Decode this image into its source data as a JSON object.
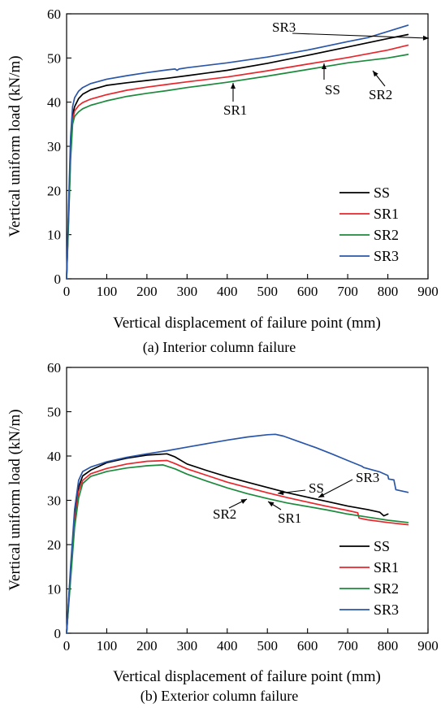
{
  "colors": {
    "SS": "#000000",
    "SR1": "#e8262c",
    "SR2": "#1c8a3c",
    "SR3": "#2a56a8"
  },
  "chart_data": [
    {
      "type": "line",
      "caption": "(a) Interior column failure",
      "xlabel": "Vertical displacement of failure point (mm)",
      "ylabel": "Vertical uniform load (kN/m)",
      "xlim": [
        0,
        900
      ],
      "ylim": [
        0,
        60
      ],
      "xticks": [
        0,
        100,
        200,
        300,
        400,
        500,
        600,
        700,
        800,
        900
      ],
      "yticks": [
        0,
        10,
        20,
        30,
        40,
        50,
        60
      ],
      "grid": false,
      "legend_position": "bottom-right",
      "legend": [
        "SS",
        "SR1",
        "SR2",
        "SR3"
      ],
      "series": [
        {
          "name": "SS",
          "x": [
            0,
            5,
            10,
            15,
            20,
            30,
            40,
            60,
            100,
            150,
            200,
            250,
            300,
            400,
            500,
            600,
            700,
            800,
            850
          ],
          "y": [
            0,
            15,
            29,
            37,
            39,
            40.8,
            41.8,
            42.8,
            43.8,
            44.4,
            44.9,
            45.4,
            46,
            47.2,
            48.8,
            50.6,
            52.5,
            54.4,
            55.3
          ]
        },
        {
          "name": "SR1",
          "x": [
            0,
            5,
            10,
            15,
            20,
            30,
            40,
            60,
            100,
            150,
            200,
            250,
            300,
            400,
            500,
            600,
            700,
            800,
            850
          ],
          "y": [
            0,
            14,
            28,
            36,
            38,
            39.2,
            39.9,
            40.7,
            41.7,
            42.7,
            43.4,
            44,
            44.6,
            45.7,
            47.1,
            48.6,
            50.1,
            51.8,
            52.9
          ]
        },
        {
          "name": "SR2",
          "x": [
            0,
            5,
            10,
            15,
            20,
            30,
            40,
            60,
            100,
            150,
            200,
            250,
            300,
            400,
            500,
            600,
            700,
            800,
            850
          ],
          "y": [
            0,
            13,
            27,
            35,
            36.8,
            37.8,
            38.5,
            39.3,
            40.3,
            41.3,
            42,
            42.6,
            43.3,
            44.5,
            45.9,
            47.4,
            48.9,
            50,
            50.8
          ]
        },
        {
          "name": "SR3",
          "x": [
            0,
            5,
            10,
            15,
            20,
            30,
            40,
            60,
            100,
            150,
            200,
            250,
            270,
            275,
            280,
            300,
            400,
            500,
            600,
            700,
            750,
            800,
            850
          ],
          "y": [
            0,
            17,
            32,
            39,
            41,
            42.5,
            43.3,
            44.2,
            45.2,
            46,
            46.7,
            47.3,
            47.5,
            47.2,
            47.5,
            47.8,
            48.9,
            50.2,
            51.8,
            53.7,
            54.6,
            56,
            57.4
          ]
        }
      ],
      "annotations": [
        {
          "text": "SR3",
          "series": "SR3",
          "x": 530,
          "y": 50.4
        },
        {
          "text": "SR1",
          "series": "SR1",
          "x": 420,
          "y": 46
        },
        {
          "text": "SS",
          "series": "SS",
          "x": 650,
          "y": 51
        },
        {
          "text": "SR2",
          "series": "SR2",
          "x": 770,
          "y": 49.9
        }
      ]
    },
    {
      "type": "line",
      "caption": "(b) Exterior column failure",
      "xlabel": "Vertical displacement of failure point (mm)",
      "ylabel": "Vertical uniform load (kN/m)",
      "xlim": [
        0,
        900
      ],
      "ylim": [
        0,
        60
      ],
      "xticks": [
        0,
        100,
        200,
        300,
        400,
        500,
        600,
        700,
        800,
        900
      ],
      "yticks": [
        0,
        10,
        20,
        30,
        40,
        50,
        60
      ],
      "grid": false,
      "legend_position": "bottom-right",
      "legend": [
        "SS",
        "SR1",
        "SR2",
        "SR3"
      ],
      "series": [
        {
          "name": "SS",
          "x": [
            0,
            10,
            20,
            30,
            40,
            60,
            100,
            150,
            200,
            250,
            270,
            300,
            350,
            400,
            450,
            500,
            550,
            600,
            650,
            700,
            750,
            780,
            790,
            800
          ],
          "y": [
            0,
            14,
            27,
            33,
            35.5,
            36.8,
            38.5,
            39.5,
            40.2,
            40.5,
            39.8,
            38.2,
            36.7,
            35.3,
            34.1,
            32.9,
            31.7,
            30.7,
            29.7,
            28.7,
            27.9,
            27.3,
            26.5,
            26.9
          ]
        },
        {
          "name": "SR1",
          "x": [
            0,
            10,
            20,
            30,
            40,
            60,
            100,
            150,
            200,
            250,
            270,
            300,
            350,
            400,
            450,
            500,
            550,
            600,
            650,
            700,
            725,
            728,
            750,
            800,
            850
          ],
          "y": [
            0,
            13,
            25,
            32,
            34.5,
            36,
            37.2,
            38.2,
            38.8,
            39,
            38.3,
            37.1,
            35.6,
            34.1,
            32.9,
            31.7,
            30.6,
            29.6,
            28.6,
            27.7,
            27.2,
            26,
            25.6,
            25,
            24.5
          ]
        },
        {
          "name": "SR2",
          "x": [
            0,
            10,
            20,
            30,
            40,
            60,
            100,
            150,
            200,
            240,
            270,
            300,
            350,
            400,
            450,
            500,
            550,
            600,
            650,
            700,
            750,
            800,
            850
          ],
          "y": [
            0,
            12,
            24,
            30.5,
            33.8,
            35.4,
            36.5,
            37.3,
            37.8,
            38,
            37.1,
            35.9,
            34.3,
            32.8,
            31.5,
            30.4,
            29.4,
            28.6,
            27.8,
            26.9,
            26.2,
            25.5,
            25
          ]
        },
        {
          "name": "SR3",
          "x": [
            0,
            10,
            20,
            30,
            40,
            60,
            100,
            150,
            200,
            250,
            300,
            350,
            400,
            450,
            500,
            520,
            540,
            580,
            620,
            660,
            700,
            735,
            740,
            780,
            800,
            802,
            815,
            820,
            850
          ],
          "y": [
            0,
            15,
            28,
            34.5,
            36.5,
            37.5,
            38.7,
            39.7,
            40.5,
            41.2,
            42,
            42.8,
            43.6,
            44.3,
            44.8,
            44.9,
            44.5,
            43.2,
            41.9,
            40.5,
            39,
            37.7,
            37.4,
            36.4,
            35.6,
            34.8,
            34.6,
            32.4,
            31.8
          ]
        }
      ],
      "annotations": [
        {
          "text": "SR3",
          "series": "SR3",
          "x": 585,
          "y": 43
        },
        {
          "text": "SS",
          "series": "SS",
          "x": 530,
          "y": 32.4
        },
        {
          "text": "SR2",
          "series": "SR2",
          "x": 350,
          "y": 34.3
        },
        {
          "text": "SR1",
          "series": "SR1",
          "x": 450,
          "y": 32.8
        }
      ]
    }
  ]
}
